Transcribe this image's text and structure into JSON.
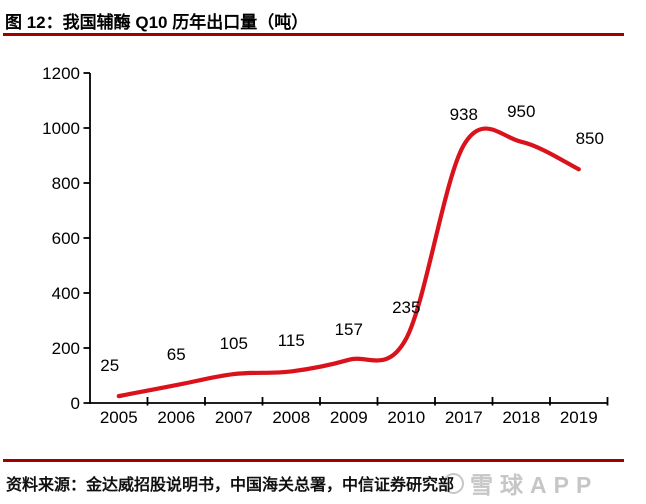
{
  "header": {
    "title": "图 12：我国辅酶 Q10 历年出口量（吨）"
  },
  "footer": {
    "source": "资料来源：金达威招股说明书，中国海关总署，中信证券研究部",
    "watermark": "雪球APP"
  },
  "colors": {
    "accent_rule": "#a00000",
    "line": "#d9121b",
    "text": "#000000",
    "watermark": "#c6c6c6",
    "background": "#ffffff"
  },
  "chart_data": {
    "type": "line",
    "title": "图 12：我国辅酶 Q10 历年出口量（吨）",
    "categories": [
      "2005",
      "2006",
      "2007",
      "2008",
      "2009",
      "2010",
      "2017",
      "2018",
      "2019"
    ],
    "values": [
      25,
      65,
      105,
      115,
      157,
      235,
      938,
      950,
      850
    ],
    "xlabel": "",
    "ylabel": "",
    "ylim": [
      0,
      1200
    ],
    "yticks": [
      0,
      200,
      400,
      600,
      800,
      1000,
      1200
    ],
    "grid": false,
    "legend": false,
    "smoothed": true,
    "data_labels": true,
    "line_color": "#d9121b"
  }
}
